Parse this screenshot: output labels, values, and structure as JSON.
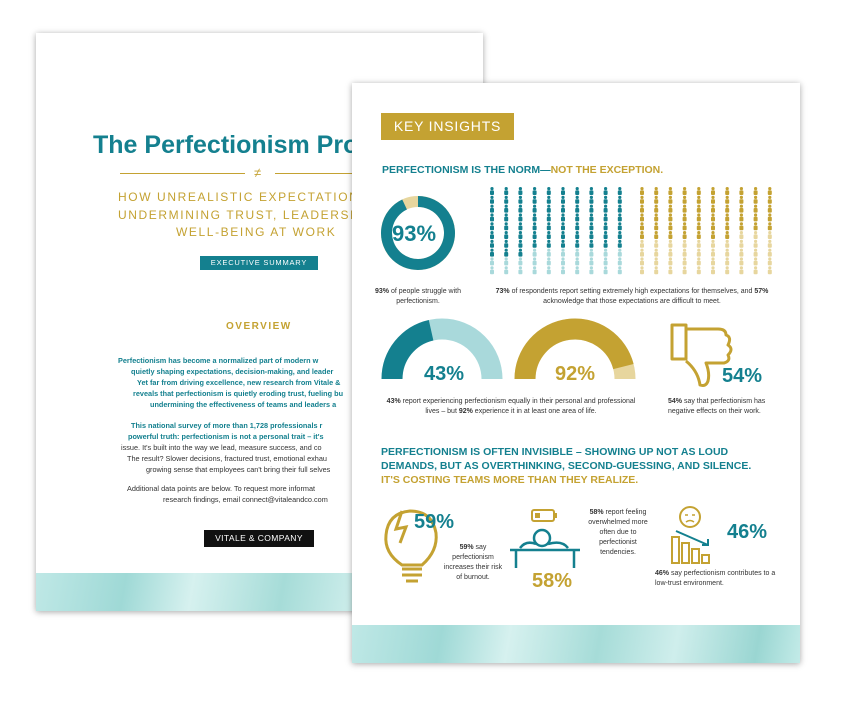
{
  "back_page": {
    "title": "The Perfectionism Pro",
    "divider": "≠",
    "subtitle_lines": [
      "HOW UNREALISTIC EXPECTATION",
      "UNDERMINING TRUST, LEADERSH",
      "WELL-BEING AT WORK"
    ],
    "badge": "EXECUTIVE SUMMARY",
    "overview_heading": "OVERVIEW",
    "paragraph_1": [
      "Perfectionism has become a normalized part of modern w",
      "quietly shaping expectations, decision-making, and leader",
      "Yet far from driving excellence, new research from Vitale &",
      "reveals that perfectionism is quietly eroding trust, fueling bu",
      "undermining the effectiveness of teams and leaders a"
    ],
    "paragraph_2": [
      "This national survey of more than 1,728 professionals r",
      "powerful truth: perfectionism is not a personal trait – it's",
      "issue. It's built into the way we lead, measure success, and co",
      "The result? Slower decisions, fractured trust, emotional exhau",
      "growing sense that employees can't bring their full selves"
    ],
    "paragraph_3": [
      "Additional data points are below. To request more informat",
      "research findings, email connect@vitaleandco.com"
    ],
    "logo": "VITALE & COMPANY"
  },
  "front_page": {
    "badge": "KEY INSIGHTS",
    "heading_1": {
      "teal": "PERFECTIONISM IS THE NORM—",
      "gold": "NOT THE EXCEPTION."
    },
    "donut": {
      "value": 93,
      "label": "93%",
      "caption": [
        {
          "bold": "93%"
        },
        {
          "text": " of people struggle with perfectionism."
        }
      ]
    },
    "people_grids": [
      {
        "value": 73,
        "color": "#14808f",
        "light": "#a9d9db"
      },
      {
        "value": 57,
        "color": "#c4a232",
        "light": "#e7d69e"
      }
    ],
    "people_caption": [
      {
        "bold": "73%"
      },
      {
        "text": " of respondents report setting extremely high expectations for themselves, and "
      },
      {
        "bold": "57%"
      },
      {
        "text": " acknowledge that those expectations are difficult to meet."
      }
    ],
    "half_donuts": [
      {
        "value": 43,
        "label": "43%",
        "color": "#14808f",
        "light": "#a9d9db"
      },
      {
        "value": 92,
        "label": "92%",
        "color": "#c4a232",
        "light": "#e7d69e"
      }
    ],
    "half_caption": [
      {
        "bold": "43%"
      },
      {
        "text": " report experiencing perfectionism equally in their personal and professional lives – but "
      },
      {
        "bold": "92%"
      },
      {
        "text": " experience it in at least one area of life."
      }
    ],
    "thumbs": {
      "label": "54%",
      "caption": [
        {
          "bold": "54%"
        },
        {
          "text": " say that perfectionism has negative effects on their work."
        }
      ]
    },
    "heading_2": {
      "teal_lines": [
        "PERFECTIONISM IS OFTEN INVISIBLE – SHOWING UP NOT AS LOUD",
        "DEMANDS, BUT AS OVERTHINKING, SECOND-GUESSING, AND SILENCE."
      ],
      "gold_line": "IT'S COSTING TEAMS MORE THAN THEY REALIZE."
    },
    "burnout": {
      "label": "59%",
      "caption": [
        {
          "bold": "59%"
        },
        {
          "text": " say perfectionism increases their risk of burnout."
        }
      ]
    },
    "overwhelmed": {
      "label": "58%",
      "caption": [
        {
          "bold": "58%"
        },
        {
          "text": " report feeling overwhelmed more often due to perfectionist tendencies."
        }
      ]
    },
    "trust": {
      "label": "46%",
      "caption": [
        {
          "bold": "46%"
        },
        {
          "text": " say perfectionism contributes to a low-trust environment."
        }
      ]
    }
  }
}
